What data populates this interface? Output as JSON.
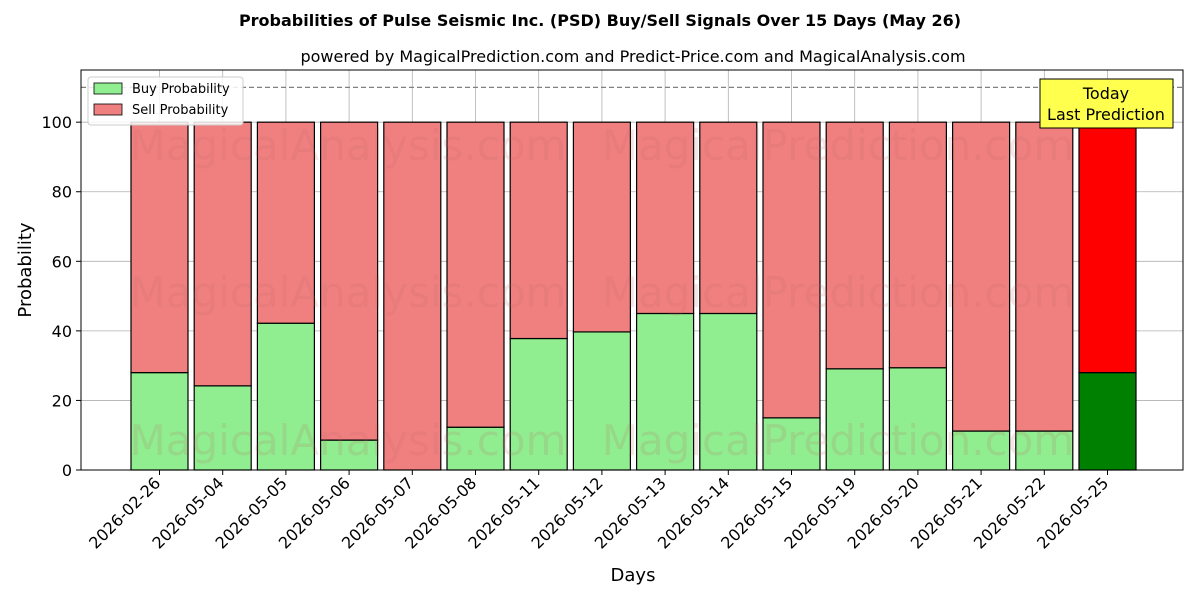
{
  "chart_data": {
    "type": "bar",
    "stacked": true,
    "title": "Probabilities of Pulse Seismic Inc. (PSD) Buy/Sell Signals Over 15 Days (May 26)",
    "subtitle": "powered by MagicalPrediction.com and Predict-Price.com and MagicalAnalysis.com",
    "xlabel": "Days",
    "ylabel": "Probability",
    "ylim": [
      0,
      115
    ],
    "yticks": [
      0,
      20,
      40,
      60,
      80,
      100
    ],
    "reference_line": 110,
    "grid": true,
    "legend_position": "top-left",
    "categories": [
      "2026-02-26",
      "2026-05-04",
      "2026-05-05",
      "2026-05-06",
      "2026-05-07",
      "2026-05-08",
      "2026-05-11",
      "2026-05-12",
      "2026-05-13",
      "2026-05-14",
      "2026-05-15",
      "2026-05-19",
      "2026-05-20",
      "2026-05-21",
      "2026-05-22",
      "2026-05-25"
    ],
    "series": [
      {
        "name": "Buy Probability",
        "color": "#90ee90",
        "highlight_color": "#008000",
        "values": [
          28,
          24.2,
          42.2,
          8.6,
          0,
          12.3,
          37.8,
          39.7,
          45,
          45,
          15,
          29.1,
          29.4,
          11.2,
          11.2,
          28
        ]
      },
      {
        "name": "Sell Probability",
        "color": "#f08080",
        "highlight_color": "#ff0000",
        "values": [
          72,
          75.8,
          57.8,
          91.4,
          100,
          87.7,
          62.2,
          60.3,
          55,
          55,
          85,
          70.9,
          70.6,
          88.8,
          88.8,
          72
        ]
      }
    ],
    "highlight_index": 15,
    "annotation": {
      "line1": "Today",
      "line2": "Last Prediction",
      "background": "#ffff4d"
    },
    "watermarks": [
      "MagicalAnalysis.com",
      "MagicalPrediction.com"
    ]
  }
}
